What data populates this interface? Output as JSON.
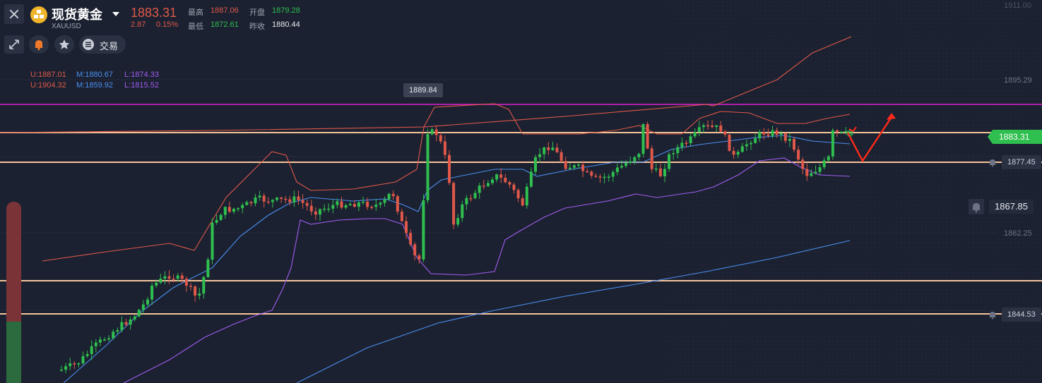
{
  "header": {
    "title": "现货黄金",
    "symbol": "XAUUSD",
    "price": "1883.31",
    "change": "2.87",
    "change_pct": "0.15%",
    "high_label": "最高",
    "high": "1887.06",
    "low_label": "最低",
    "low": "1872.61",
    "open_label": "开盘",
    "open": "1879.28",
    "prev_close_label": "昨收",
    "prev_close": "1880.44"
  },
  "toolbar": {
    "trade_label": "交易"
  },
  "indicators": {
    "row1": {
      "u": "U:1887.01",
      "m": "M:1880.67",
      "l": "L:1874.33"
    },
    "row2": {
      "u": "U:1904.32",
      "m": "M:1859.92",
      "l": "L:1815.52"
    }
  },
  "annotations": {
    "peak_label": "1889.84"
  },
  "price_axis": {
    "ticks": [
      "1911.00",
      "1895.29",
      "1862.25"
    ],
    "current_tag": "1883.31",
    "line_tags": [
      "1877.45",
      "1867.85",
      "1844.53"
    ]
  },
  "colors": {
    "up": "#2fbf4f",
    "down": "#e0584a",
    "upper_band": "#e0584a",
    "middle_band": "#4a8ef0",
    "lower_band": "#a05cf0",
    "resistance": "#e31fd4",
    "level": "#f6c49a",
    "arrow": "#ff2a1a"
  },
  "icons": [
    "close-icon",
    "gold-logo-icon",
    "caret-down-icon",
    "collapse-icon",
    "bell-icon",
    "star-icon",
    "trade-menu-icon"
  ]
}
